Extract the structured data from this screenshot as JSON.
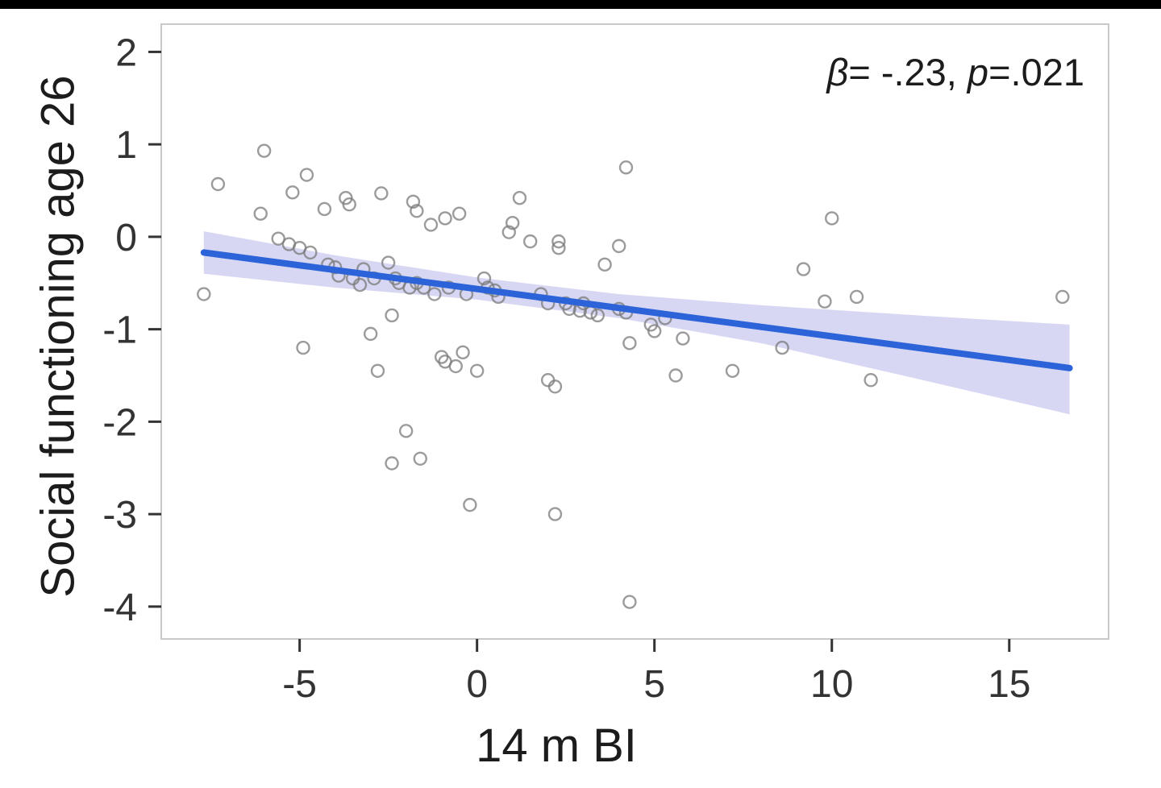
{
  "window": {
    "top_bar_color": "#000000"
  },
  "chart_data": {
    "type": "scatter",
    "title": "",
    "xlabel": "14 m BI",
    "ylabel": "Social functioning age 26",
    "annotation": {
      "full": "β= -.23, p=.021",
      "beta_symbol": "β",
      "beta_text": "= -.23, ",
      "p_symbol": "p",
      "p_text": "=.021"
    },
    "xlim": [
      -8.9,
      17.8
    ],
    "ylim": [
      -4.35,
      2.3
    ],
    "x_ticks": [
      -5,
      0,
      5,
      10,
      15
    ],
    "y_ticks": [
      2,
      1,
      0,
      -1,
      -2,
      -3,
      -4
    ],
    "grid": false,
    "legend": "none",
    "styles": {
      "point_color": "#7a7a7a",
      "point_opacity": 0.75,
      "line_color": "#2c63d9",
      "band_color": "#9b9be0",
      "band_opacity": 0.4,
      "tick_color": "#333333",
      "axis_text_color": "#1c1c1c",
      "panel_border_color": "#c9c9c9",
      "background": "#ffffff"
    },
    "regression_line": {
      "x": [
        -7.7,
        16.7
      ],
      "y": [
        -0.17,
        -1.42
      ]
    },
    "confidence_band": {
      "x": [
        -7.7,
        -4.0,
        0.0,
        4.0,
        8.0,
        12.0,
        16.7
      ],
      "upper": [
        0.06,
        -0.2,
        -0.44,
        -0.62,
        -0.74,
        -0.84,
        -0.95
      ],
      "lower": [
        -0.4,
        -0.55,
        -0.68,
        -0.88,
        -1.15,
        -1.5,
        -1.92
      ]
    },
    "points": [
      [
        -7.7,
        -0.62
      ],
      [
        -7.3,
        0.57
      ],
      [
        -6.0,
        0.93
      ],
      [
        -6.1,
        0.25
      ],
      [
        -5.6,
        -0.02
      ],
      [
        -5.3,
        -0.08
      ],
      [
        -5.2,
        0.48
      ],
      [
        -5.0,
        -0.12
      ],
      [
        -4.9,
        -1.2
      ],
      [
        -4.8,
        0.67
      ],
      [
        -4.7,
        -0.17
      ],
      [
        -4.3,
        0.3
      ],
      [
        -4.2,
        -0.3
      ],
      [
        -4.0,
        -0.33
      ],
      [
        -3.9,
        -0.42
      ],
      [
        -3.7,
        0.42
      ],
      [
        -3.6,
        0.35
      ],
      [
        -3.5,
        -0.45
      ],
      [
        -3.3,
        -0.52
      ],
      [
        -3.2,
        -0.35
      ],
      [
        -3.0,
        -1.05
      ],
      [
        -2.9,
        -0.45
      ],
      [
        -2.8,
        -1.45
      ],
      [
        -2.7,
        0.47
      ],
      [
        -2.5,
        -0.28
      ],
      [
        -2.4,
        -0.85
      ],
      [
        -2.4,
        -2.45
      ],
      [
        -2.3,
        -0.45
      ],
      [
        -2.2,
        -0.5
      ],
      [
        -2.0,
        -2.1
      ],
      [
        -1.9,
        -0.55
      ],
      [
        -1.8,
        0.38
      ],
      [
        -1.7,
        0.28
      ],
      [
        -1.7,
        -0.5
      ],
      [
        -1.6,
        -2.4
      ],
      [
        -1.5,
        -0.55
      ],
      [
        -1.3,
        0.13
      ],
      [
        -1.2,
        -0.62
      ],
      [
        -1.0,
        -1.3
      ],
      [
        -0.9,
        0.2
      ],
      [
        -0.9,
        -1.35
      ],
      [
        -0.8,
        -0.55
      ],
      [
        -0.6,
        -1.4
      ],
      [
        -0.5,
        0.25
      ],
      [
        -0.4,
        -1.25
      ],
      [
        -0.3,
        -0.62
      ],
      [
        -0.2,
        -2.9
      ],
      [
        0.0,
        -1.45
      ],
      [
        0.2,
        -0.45
      ],
      [
        0.3,
        -0.55
      ],
      [
        0.5,
        -0.58
      ],
      [
        0.6,
        -0.65
      ],
      [
        0.9,
        0.05
      ],
      [
        1.0,
        0.15
      ],
      [
        1.2,
        0.42
      ],
      [
        1.5,
        -0.05
      ],
      [
        1.8,
        -0.62
      ],
      [
        2.0,
        -0.72
      ],
      [
        2.0,
        -1.55
      ],
      [
        2.2,
        -3.0
      ],
      [
        2.2,
        -1.62
      ],
      [
        2.3,
        -0.05
      ],
      [
        2.3,
        -0.12
      ],
      [
        2.5,
        -0.72
      ],
      [
        2.6,
        -0.78
      ],
      [
        2.9,
        -0.8
      ],
      [
        3.0,
        -0.72
      ],
      [
        3.2,
        -0.82
      ],
      [
        3.4,
        -0.85
      ],
      [
        3.6,
        -0.3
      ],
      [
        4.0,
        -0.1
      ],
      [
        4.0,
        -0.78
      ],
      [
        4.2,
        -0.82
      ],
      [
        4.3,
        -1.15
      ],
      [
        4.2,
        0.75
      ],
      [
        4.3,
        -3.95
      ],
      [
        4.9,
        -0.95
      ],
      [
        5.0,
        -1.02
      ],
      [
        5.3,
        -0.88
      ],
      [
        5.6,
        -1.5
      ],
      [
        5.8,
        -1.1
      ],
      [
        7.2,
        -1.45
      ],
      [
        8.6,
        -1.2
      ],
      [
        9.2,
        -0.35
      ],
      [
        9.8,
        -0.7
      ],
      [
        10.0,
        0.2
      ],
      [
        10.7,
        -0.65
      ],
      [
        11.1,
        -1.55
      ],
      [
        16.5,
        -0.65
      ]
    ]
  }
}
